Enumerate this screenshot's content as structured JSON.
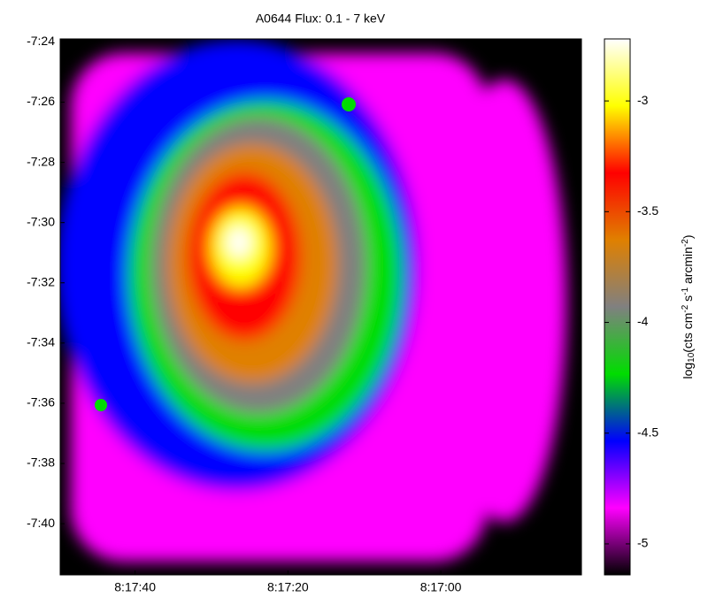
{
  "chart_data": {
    "type": "image",
    "title": "A0644 Flux: 0.1 - 7 keV",
    "xlim": [
      29869.8,
      29801.6
    ],
    "xticks": [
      {
        "value": 29860,
        "label": "8:17:40"
      },
      {
        "value": 29840,
        "label": "8:17:20"
      },
      {
        "value": 29820,
        "label": "8:17:00"
      }
    ],
    "ylim": [
      -461.7,
      -443.9
    ],
    "yticks": [
      {
        "value": -444,
        "label": "-7:24"
      },
      {
        "value": -446,
        "label": "-7:26"
      },
      {
        "value": -448,
        "label": "-7:28"
      },
      {
        "value": -450,
        "label": "-7:30"
      },
      {
        "value": -452,
        "label": "-7:32"
      },
      {
        "value": -454,
        "label": "-7:34"
      },
      {
        "value": -456,
        "label": "-7:36"
      },
      {
        "value": -458,
        "label": "-7:38"
      },
      {
        "value": -460,
        "label": "-7:40"
      }
    ],
    "clim": [
      -5.14,
      -2.72
    ],
    "cticks": [
      -5,
      -4.5,
      -4,
      -3.5,
      -3
    ],
    "colorbar_label": [
      "log",
      "10",
      "(cts cm",
      "-2",
      " s",
      "-1",
      " arcmin",
      "-2",
      ")"
    ],
    "colormap": [
      "#000000",
      "#ff00ff",
      "#0000ff",
      "#00dd00",
      "#808080",
      "#e08000",
      "#ff0000",
      "#ffff00",
      "#ffffff"
    ]
  }
}
